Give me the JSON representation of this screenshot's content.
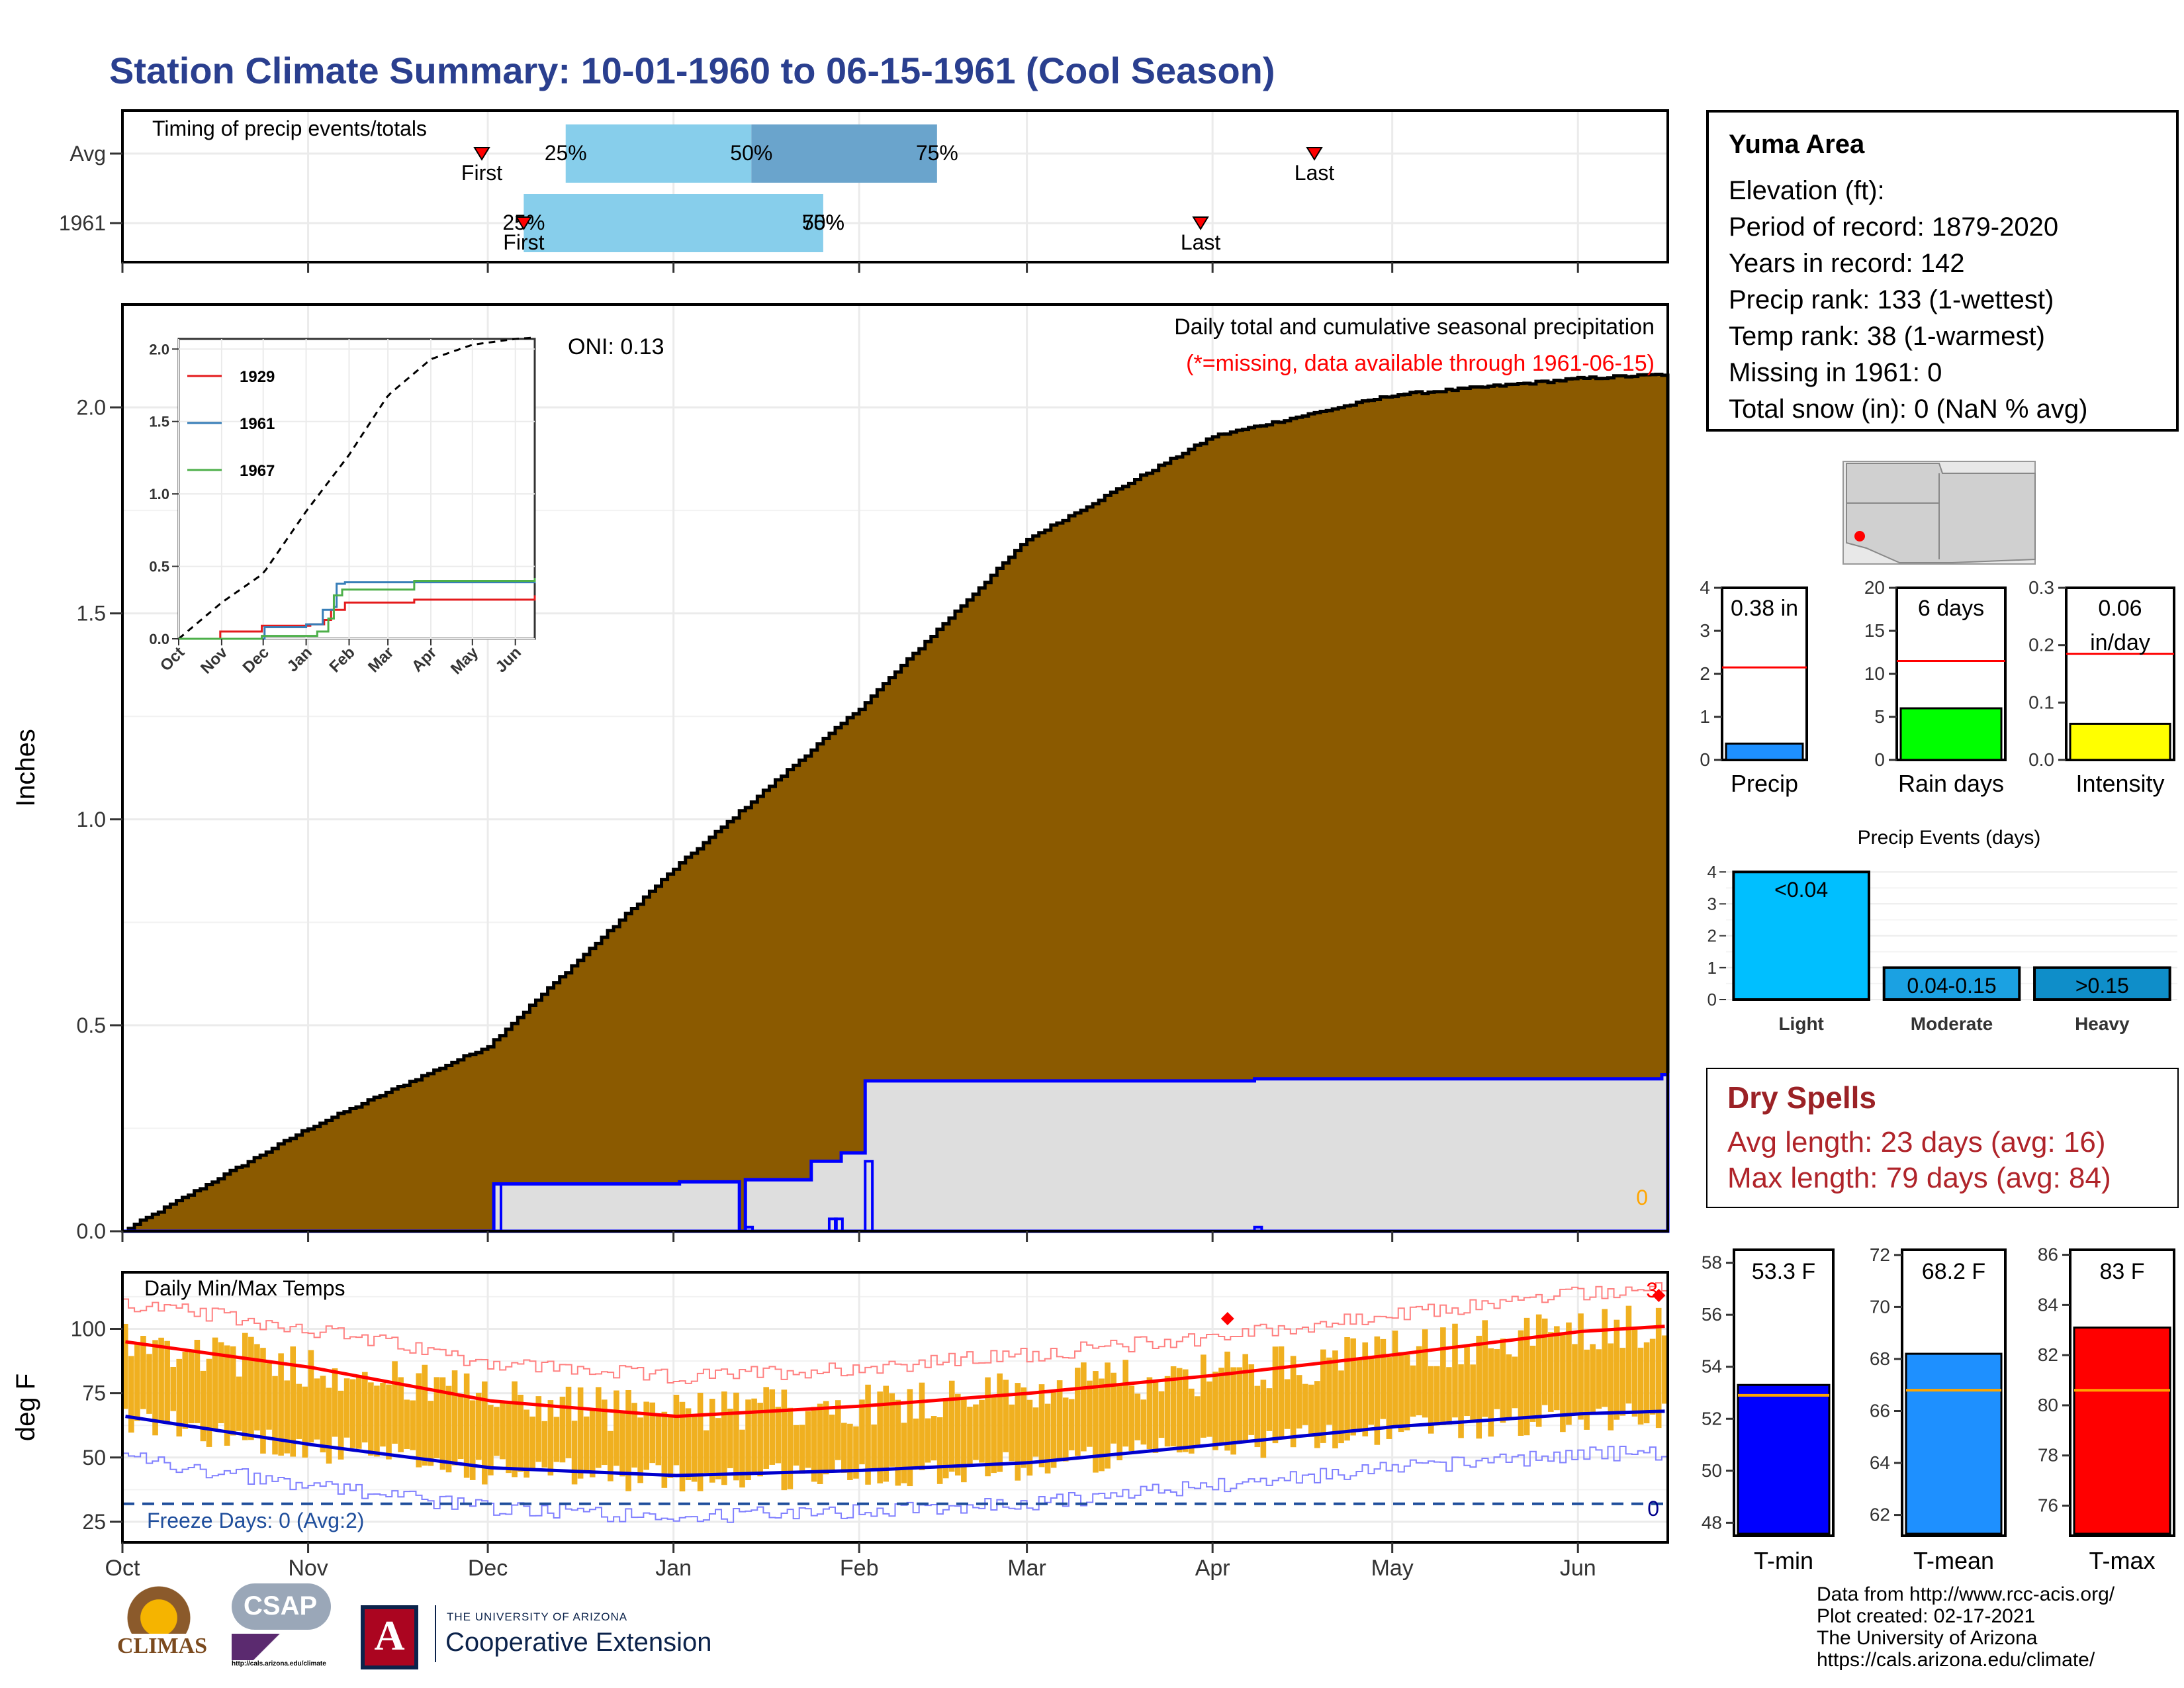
{
  "title": "Station Climate Summary: 10-01-1960 to 06-15-1961 (Cool Season)",
  "timing": {
    "label": "Timing of precip events/totals",
    "rows": [
      {
        "name": "Avg",
        "first_label": "First",
        "last_label": "Last",
        "first": "Nov 30",
        "last": "Apr 18",
        "bars": [
          {
            "from": "Dec 14",
            "to": "Jan 14",
            "color": "#87ceeb"
          },
          {
            "from": "Jan 14",
            "to": "Feb 14",
            "color": "#6aa4cc"
          }
        ],
        "pct_labels": [
          {
            "date": "Dec 14",
            "text": "25%"
          },
          {
            "date": "Jan 14",
            "text": "50%"
          },
          {
            "date": "Feb 14",
            "text": "75%"
          }
        ]
      },
      {
        "name": "1961",
        "first_label": "First",
        "last_label": "Last",
        "first": "Dec 7",
        "last": "Mar 30",
        "bars": [
          {
            "from": "Dec 7",
            "to": "Jan 26",
            "color": "#87ceeb"
          }
        ],
        "pct_labels": [
          {
            "date": "Dec 7",
            "text": "25%"
          },
          {
            "date": "Jan 26",
            "text": "50%"
          },
          {
            "date": "Jan 26",
            "text": "75%"
          }
        ]
      }
    ]
  },
  "precip_panel": {
    "ylabel": "Inches",
    "yticks": [
      "0.0",
      "0.5",
      "1.0",
      "1.5",
      "2.0"
    ],
    "oni": "ONI: 0.13",
    "subtitle": "Daily total and cumulative seasonal precipitation",
    "missing_note": "(*=missing, data available through 1961-06-15)",
    "zero_count": "0"
  },
  "inset": {
    "yticks": [
      "0.0",
      "0.5",
      "1.0",
      "1.5",
      "2.0"
    ],
    "months": [
      "Oct",
      "Nov",
      "Dec",
      "Jan",
      "Feb",
      "Mar",
      "Apr",
      "May",
      "Jun"
    ],
    "legend": [
      {
        "name": "1929",
        "color": "#e41a1c"
      },
      {
        "name": "1961",
        "color": "#377eb8"
      },
      {
        "name": "1967",
        "color": "#4daf4a"
      }
    ]
  },
  "temp_panel": {
    "ylabel": "deg F",
    "label": "Daily Min/Max Temps",
    "yticks": [
      "25",
      "50",
      "75",
      "100"
    ],
    "freeze_label": "Freeze Days: 0 (Avg:2)",
    "freeze_count": "0",
    "top_count": "3"
  },
  "x_months": [
    "Oct",
    "Nov",
    "Dec",
    "Jan",
    "Feb",
    "Mar",
    "Apr",
    "May",
    "Jun"
  ],
  "info": {
    "station": "Yuma Area",
    "lines": [
      "Elevation (ft):",
      "Period of record: 1879-2020",
      "Years in record: 142",
      "Precip rank: 133 (1-wettest)",
      "Temp rank: 38 (1-warmest)",
      "Missing in 1961: 0",
      "Total snow (in): 0 (NaN % avg)"
    ]
  },
  "mini_bars": [
    {
      "label": "Precip",
      "value_text": "0.38 in",
      "value": 0.38,
      "avg": 2.15,
      "ymax": 4,
      "yticks": [
        "0",
        "1",
        "2",
        "3",
        "4"
      ],
      "color": "#1e90ff"
    },
    {
      "label": "Rain days",
      "value_text": "6 days",
      "value": 6,
      "avg": 11.5,
      "ymax": 20,
      "yticks": [
        "0",
        "5",
        "10",
        "15",
        "20"
      ],
      "color": "#00ff00"
    },
    {
      "label": "Intensity",
      "value_text": "0.06\nin/day",
      "value": 0.063,
      "avg": 0.185,
      "ymax": 0.3,
      "yticks": [
        "0.0",
        "0.1",
        "0.2",
        "0.3"
      ],
      "color": "#ffff00"
    }
  ],
  "events": {
    "title": "Precip Events (days)",
    "yticks": [
      "0",
      "1",
      "2",
      "3",
      "4"
    ],
    "bars": [
      {
        "label": "Light",
        "bar_text": "<0.04",
        "value": 4,
        "color": "#00bfff"
      },
      {
        "label": "Moderate",
        "bar_text": "0.04-0.15",
        "value": 1,
        "color": "#1ba1e2"
      },
      {
        "label": "Heavy",
        "bar_text": ">0.15",
        "value": 1,
        "color": "#0f8ec9"
      }
    ]
  },
  "dry_spells": {
    "title": "Dry Spells",
    "avg_line": "Avg length: 23 days (avg: 16)",
    "max_line": "Max length: 79 days (avg: 84)"
  },
  "temp_bars": [
    {
      "label": "T-min",
      "value_text": "53.3 F",
      "value": 53.3,
      "avg": 52.9,
      "ymin": 47.5,
      "ymax": 58.5,
      "yticks": [
        "48",
        "50",
        "52",
        "54",
        "56",
        "58"
      ],
      "color": "#0000ff"
    },
    {
      "label": "T-mean",
      "value_text": "68.2 F",
      "value": 68.2,
      "avg": 66.8,
      "ymin": 61.2,
      "ymax": 72.2,
      "yticks": [
        "62",
        "64",
        "66",
        "68",
        "70",
        "72"
      ],
      "color": "#1e90ff"
    },
    {
      "label": "T-max",
      "value_text": "83 F",
      "value": 83.1,
      "avg": 80.6,
      "ymin": 74.8,
      "ymax": 86.2,
      "yticks": [
        "76",
        "78",
        "80",
        "82",
        "84",
        "86"
      ],
      "color": "#ff0000"
    }
  ],
  "footer": [
    "Data from http://www.rcc-acis.org/",
    "Plot created: 02-17-2021",
    "The University of Arizona",
    "https://cals.arizona.edu/climate/"
  ],
  "logos": {
    "climas": "CLIMAS",
    "csap": "CSAP",
    "csap_url": "http://cals.arizona.edu/climate",
    "ua_small": "THE UNIVERSITY OF ARIZONA",
    "ua_big": "Cooperative Extension"
  },
  "chart_data": [
    {
      "type": "area",
      "title": "Daily total and cumulative seasonal precipitation",
      "ylabel": "Inches",
      "ylim": [
        0,
        2.25
      ],
      "x": [
        "Oct 1",
        "Nov 1",
        "Dec 1",
        "Jan 1",
        "Feb 1",
        "Mar 1",
        "Apr 1",
        "May 1",
        "Jun 1",
        "Jun 15"
      ],
      "series": [
        {
          "name": "Avg",
          "values": [
            0.0,
            0.25,
            0.45,
            0.88,
            1.27,
            1.68,
            1.93,
            2.03,
            2.07,
            2.08
          ]
        },
        {
          "name": "1961",
          "values": [
            0.0,
            0.0,
            0.0,
            0.12,
            0.37,
            0.37,
            0.38,
            0.38,
            0.38,
            0.38
          ]
        }
      ]
    },
    {
      "type": "line",
      "title": "Daily Min/Max Temps",
      "ylabel": "deg F",
      "ylim": [
        20,
        122
      ],
      "x": [
        "Oct 1",
        "Nov 1",
        "Dec 1",
        "Jan 1",
        "Feb 1",
        "Mar 1",
        "Apr 1",
        "May 1",
        "Jun 1",
        "Jun 15"
      ],
      "series": [
        {
          "name": "Avg max",
          "values": [
            95,
            85,
            72,
            66,
            70,
            75,
            82,
            90,
            99,
            101
          ]
        },
        {
          "name": "Avg min",
          "values": [
            66,
            55,
            46,
            43,
            45,
            48,
            55,
            62,
            67,
            68
          ]
        }
      ]
    }
  ]
}
